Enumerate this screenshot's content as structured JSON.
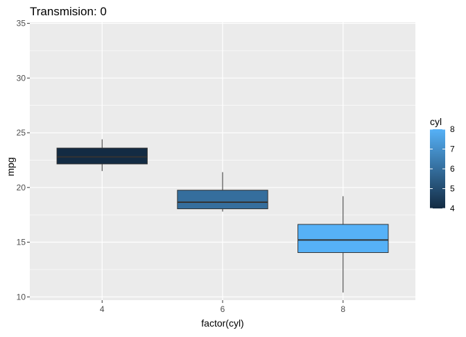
{
  "chart_data": {
    "type": "boxplot",
    "title": "Transmision: 0",
    "xlabel": "factor(cyl)",
    "ylabel": "mpg",
    "categories": [
      "4",
      "6",
      "8"
    ],
    "boxes": [
      {
        "category": "4",
        "min": 21.5,
        "q1": 22.15,
        "median": 22.8,
        "q3": 23.6,
        "max": 24.4,
        "cyl": 4
      },
      {
        "category": "6",
        "min": 17.8,
        "q1": 18.05,
        "median": 18.65,
        "q3": 19.75,
        "max": 21.4,
        "cyl": 6
      },
      {
        "category": "8",
        "min": 10.4,
        "q1": 14.05,
        "median": 15.2,
        "q3": 16.625,
        "max": 19.2,
        "cyl": 8
      }
    ],
    "ylim": [
      9.7,
      35.1
    ],
    "y_ticks": [
      10,
      15,
      20,
      25,
      30,
      35
    ],
    "legend": {
      "title": "cyl",
      "position": "right",
      "type": "continuous",
      "ticks": [
        4,
        5,
        6,
        7,
        8
      ],
      "low_color": "#132B43",
      "high_color": "#56B1F7"
    },
    "grid": true,
    "panel_background": "#EBEBEB"
  }
}
